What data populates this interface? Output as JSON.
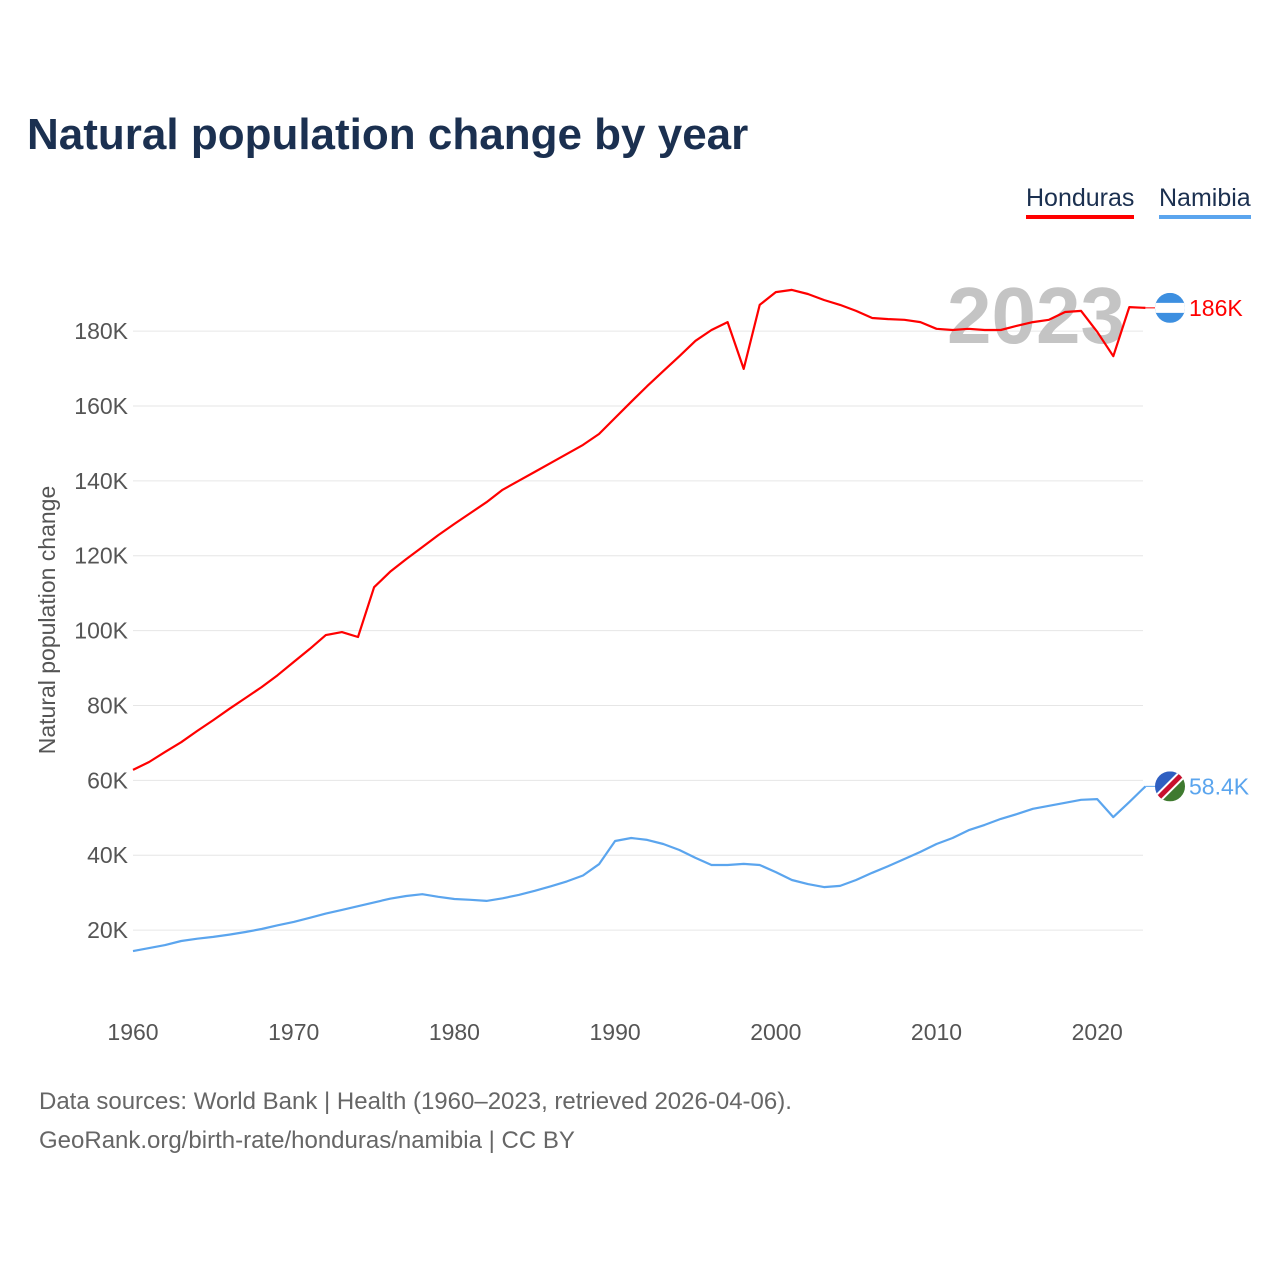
{
  "title": "Natural population change by year",
  "legend": [
    {
      "label": "Honduras",
      "color": "#ff0000"
    },
    {
      "label": "Namibia",
      "color": "#5ba5ee"
    }
  ],
  "year_label": "2023",
  "sources": [
    "Data sources: World Bank | Health (1960–2023, retrieved 2026-04-06).",
    "GeoRank.org/birth-rate/honduras/namibia | CC BY"
  ],
  "chart_data": {
    "type": "line",
    "title": "Natural population change by year",
    "xlabel": "",
    "ylabel": "Natural population change",
    "xlim": [
      1960,
      2023
    ],
    "ylim": [
      0,
      195000
    ],
    "xticks": [
      1960,
      1970,
      1980,
      1990,
      2000,
      2010,
      2020
    ],
    "yticks": [
      20000,
      40000,
      60000,
      80000,
      100000,
      120000,
      140000,
      160000,
      180000
    ],
    "ytick_labels": [
      "20K",
      "40K",
      "60K",
      "80K",
      "100K",
      "120K",
      "140K",
      "160K",
      "180K"
    ],
    "grid": true,
    "legend_position": "top-right",
    "x": [
      1960,
      1961,
      1962,
      1963,
      1964,
      1965,
      1966,
      1967,
      1968,
      1969,
      1970,
      1971,
      1972,
      1973,
      1974,
      1975,
      1976,
      1977,
      1978,
      1979,
      1980,
      1981,
      1982,
      1983,
      1984,
      1985,
      1986,
      1987,
      1988,
      1989,
      1990,
      1991,
      1992,
      1993,
      1994,
      1995,
      1996,
      1997,
      1998,
      1999,
      2000,
      2001,
      2002,
      2003,
      2004,
      2005,
      2006,
      2007,
      2008,
      2009,
      2010,
      2011,
      2012,
      2013,
      2014,
      2015,
      2016,
      2017,
      2018,
      2019,
      2020,
      2021,
      2022,
      2023
    ],
    "series": [
      {
        "name": "Honduras",
        "color": "#ff0000",
        "end_label": "186K",
        "values": [
          62800,
          64900,
          67600,
          70200,
          73200,
          76100,
          79100,
          82000,
          84900,
          88100,
          91600,
          95100,
          98800,
          99600,
          98300,
          111600,
          115700,
          119100,
          122300,
          125500,
          128500,
          131400,
          134300,
          137600,
          140000,
          142400,
          144800,
          147200,
          149600,
          152500,
          156800,
          161100,
          165300,
          169300,
          173300,
          177400,
          180300,
          182400,
          169900,
          187000,
          190400,
          191000,
          189900,
          188300,
          187000,
          185400,
          183500,
          183200,
          183000,
          182400,
          180600,
          180300,
          180600,
          180300,
          180300,
          181400,
          182400,
          183000,
          185100,
          185400,
          179800,
          173300,
          186400,
          186200
        ]
      },
      {
        "name": "Namibia",
        "color": "#5ba5ee",
        "end_label": "58.4K",
        "values": [
          14400,
          15200,
          16000,
          17100,
          17700,
          18200,
          18800,
          19500,
          20300,
          21300,
          22200,
          23300,
          24400,
          25400,
          26400,
          27400,
          28400,
          29100,
          29600,
          28900,
          28300,
          28100,
          27800,
          28500,
          29400,
          30500,
          31700,
          33000,
          34600,
          37600,
          43800,
          44600,
          44100,
          43000,
          41400,
          39300,
          37400,
          37400,
          37700,
          37400,
          35500,
          33400,
          32300,
          31500,
          31800,
          33400,
          35300,
          37100,
          39000,
          40900,
          43000,
          44600,
          46700,
          48100,
          49700,
          51000,
          52400,
          53200,
          54000,
          54800,
          55000,
          50200,
          54200,
          58400
        ]
      }
    ]
  }
}
